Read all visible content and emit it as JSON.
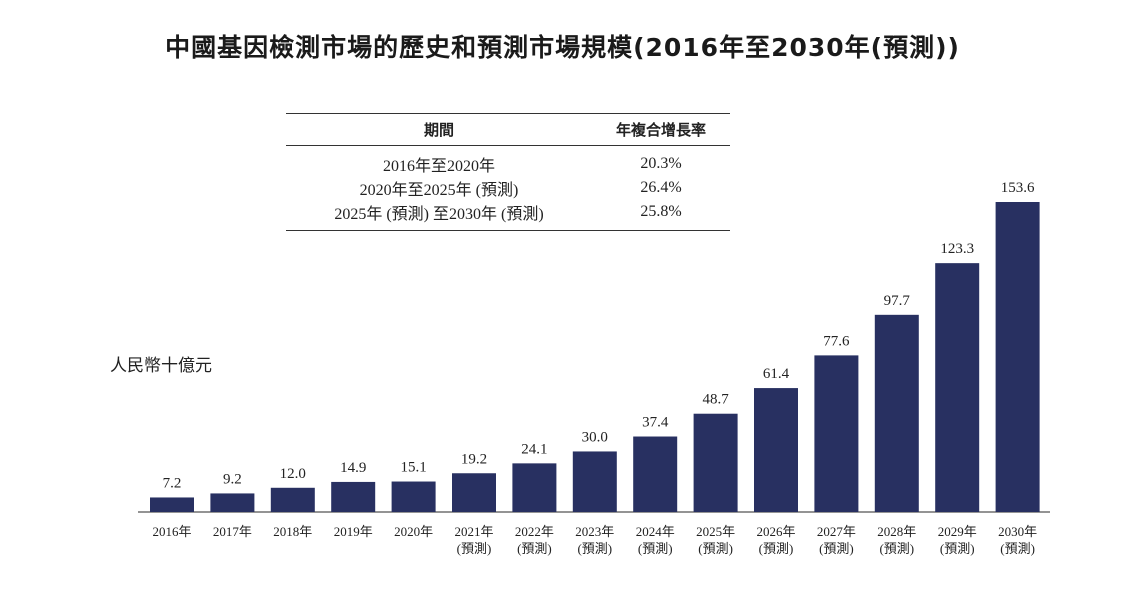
{
  "title": "中國基因檢測市場的歷史和預測市場規模(2016年至2030年(預測))",
  "cagr_table": {
    "header_period": "期間",
    "header_cagr": "年複合增長率",
    "rows": [
      {
        "period": "2016年至2020年",
        "cagr": "20.3%"
      },
      {
        "period": "2020年至2025年 (預測)",
        "cagr": "26.4%"
      },
      {
        "period": "2025年 (預測) 至2030年 (預測)",
        "cagr": "25.8%"
      }
    ]
  },
  "chart_data": {
    "type": "bar",
    "title": "中國基因檢測市場的歷史和預測市場規模(2016年至2030年(預測))",
    "ylabel": "人民幣十億元",
    "xlabel": "",
    "categories": [
      "2016年",
      "2017年",
      "2018年",
      "2019年",
      "2020年",
      "2021年",
      "2022年",
      "2023年",
      "2024年",
      "2025年",
      "2026年",
      "2027年",
      "2028年",
      "2029年",
      "2030年"
    ],
    "category_notes": [
      "",
      "",
      "",
      "",
      "",
      "(預測)",
      "(預測)",
      "(預測)",
      "(預測)",
      "(預測)",
      "(預測)",
      "(預測)",
      "(預測)",
      "(預測)",
      "(預測)"
    ],
    "values": [
      7.2,
      9.2,
      12.0,
      14.9,
      15.1,
      19.2,
      24.1,
      30.0,
      37.4,
      48.7,
      61.4,
      77.6,
      97.7,
      123.3,
      153.6
    ],
    "value_labels": [
      "7.2",
      "9.2",
      "12.0",
      "14.9",
      "15.1",
      "19.2",
      "24.1",
      "30.0",
      "37.4",
      "48.7",
      "61.4",
      "77.6",
      "97.7",
      "123.3",
      "153.6"
    ],
    "ylim": [
      0,
      153.6
    ],
    "bar_color": "#283061",
    "grid": false,
    "legend": false
  }
}
